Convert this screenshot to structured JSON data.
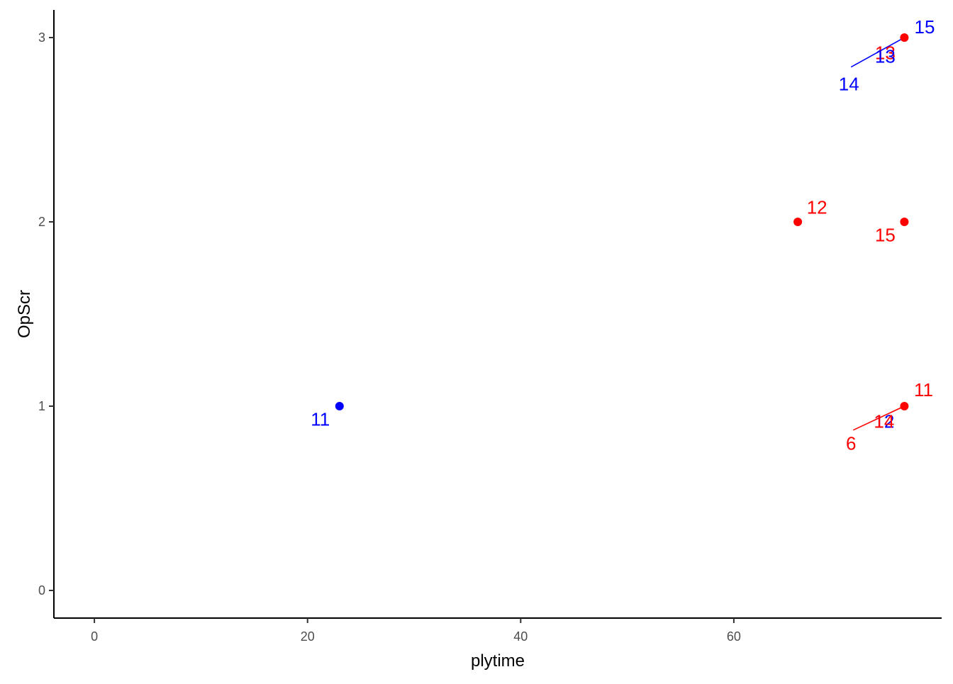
{
  "chart_data": {
    "type": "scatter",
    "title": "",
    "xlabel": "plytime",
    "ylabel": "OpScr",
    "xlim": [
      -3.8,
      79.5
    ],
    "ylim": [
      -0.15,
      3.15
    ],
    "x_ticks": [
      0,
      20,
      40,
      60
    ],
    "y_ticks": [
      0,
      1,
      2,
      3
    ],
    "x_tick_labels": [
      "0",
      "20",
      "40",
      "60"
    ],
    "y_tick_labels": [
      "0",
      "1",
      "2",
      "3"
    ],
    "grid": false,
    "legend": "none",
    "colors": {
      "blue": "#0000ff",
      "red": "#ff0000",
      "axis": "#000000",
      "tick_text": "#4d4d4d"
    },
    "points": [
      {
        "x": 23,
        "y": 1,
        "color": "#0000ff"
      },
      {
        "x": 66,
        "y": 2,
        "color": "#ff0000"
      },
      {
        "x": 76,
        "y": 2,
        "color": "#ff0000"
      },
      {
        "x": 76,
        "y": 3,
        "color": "#ff0000"
      },
      {
        "x": 76,
        "y": 1,
        "color": "#ff0000"
      }
    ],
    "labels": [
      {
        "text": "11",
        "x": 21.2,
        "y": 0.92,
        "color": "#0000ff"
      },
      {
        "text": "12",
        "x": 67.8,
        "y": 2.07,
        "color": "#ff0000"
      },
      {
        "text": "15",
        "x": 74.2,
        "y": 1.92,
        "color": "#ff0000"
      },
      {
        "text": "15",
        "x": 77.9,
        "y": 3.05,
        "color": "#0000ff"
      },
      {
        "text": "13",
        "x": 74.2,
        "y": 2.91,
        "color": "#ff0000"
      },
      {
        "text": "13",
        "x": 74.2,
        "y": 2.89,
        "color": "#0000ff"
      },
      {
        "text": "14",
        "x": 70.8,
        "y": 2.74,
        "color": "#0000ff"
      },
      {
        "text": "11",
        "x": 77.8,
        "y": 1.08,
        "color": "#ff0000"
      },
      {
        "text": "12",
        "x": 74.1,
        "y": 0.91,
        "color": "#0000ff"
      },
      {
        "text": "14",
        "x": 74.1,
        "y": 0.91,
        "color": "#ff0000"
      },
      {
        "text": "6",
        "x": 71.0,
        "y": 0.79,
        "color": "#ff0000"
      }
    ],
    "segments": [
      {
        "x1": 71.0,
        "y1": 2.84,
        "x2": 76,
        "y2": 3,
        "color": "#0000ff"
      },
      {
        "x1": 71.2,
        "y1": 0.87,
        "x2": 76,
        "y2": 1,
        "color": "#ff0000"
      }
    ]
  }
}
